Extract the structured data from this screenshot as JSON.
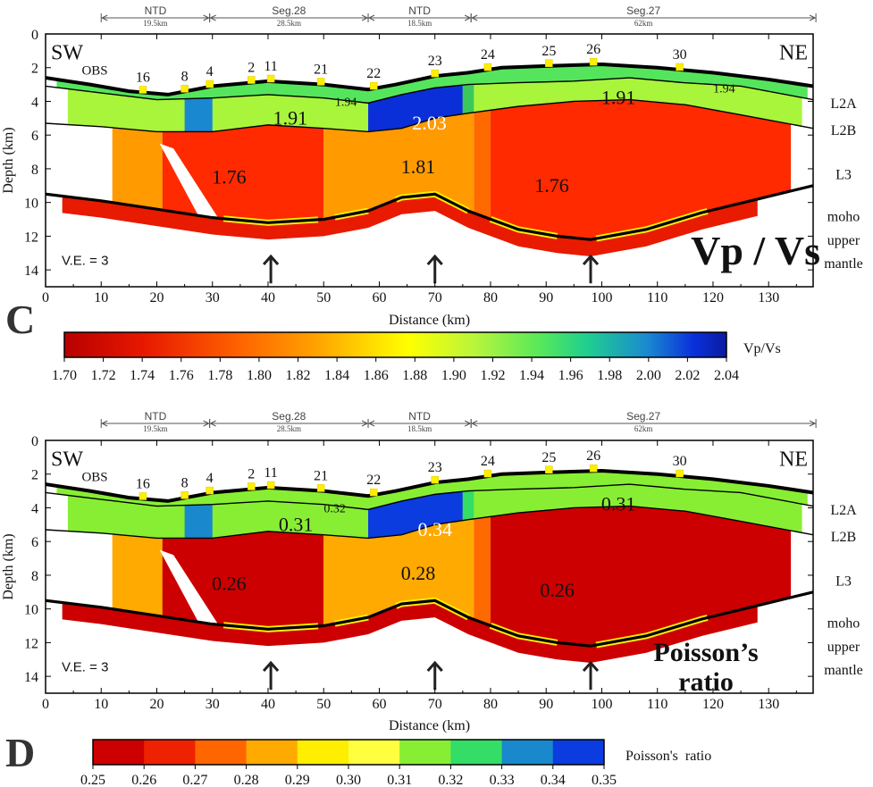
{
  "chart_data": [
    {
      "type": "heatmap",
      "panel_label": "C",
      "title": "Vp / Vs",
      "xlabel": "Distance (km)",
      "ylabel": "Depth (km)",
      "xlim": [
        0,
        138
      ],
      "ylim": [
        15,
        0
      ],
      "x_ticks": [
        "0",
        "10",
        "20",
        "30",
        "40",
        "50",
        "60",
        "70",
        "80",
        "90",
        "100",
        "110",
        "120",
        "130"
      ],
      "y_ticks": [
        "0",
        "2",
        "4",
        "6",
        "8",
        "10",
        "12",
        "14"
      ],
      "ve_label": "V.E. = 3",
      "sw_label": "SW",
      "ne_label": "NE",
      "obs_label": "OBS",
      "obs": [
        {
          "name": "16",
          "x": 17.5
        },
        {
          "name": "8",
          "x": 25
        },
        {
          "name": "4",
          "x": 29.5
        },
        {
          "name": "2",
          "x": 37
        },
        {
          "name": "11",
          "x": 40.5
        },
        {
          "name": "21",
          "x": 49.5
        },
        {
          "name": "22",
          "x": 59
        },
        {
          "name": "23",
          "x": 70
        },
        {
          "name": "24",
          "x": 79.5
        },
        {
          "name": "25",
          "x": 90.5
        },
        {
          "name": "26",
          "x": 98.5
        },
        {
          "name": "30",
          "x": 114
        }
      ],
      "segments": [
        {
          "name": "NTD",
          "length": "19.5km",
          "x0": 10,
          "x1": 29.5
        },
        {
          "name": "Seg.28",
          "length": "28.5km",
          "x0": 29.5,
          "x1": 58
        },
        {
          "name": "NTD",
          "length": "18.5km",
          "x0": 58,
          "x1": 76.5
        },
        {
          "name": "Seg.27",
          "length": "62km",
          "x0": 76.5,
          "x1": 138.5
        }
      ],
      "layers": [
        "L2A",
        "L2B",
        "L3",
        "moho",
        "upper mantle"
      ],
      "arrows_x": [
        40.5,
        70,
        98
      ],
      "values": [
        {
          "label": "1.94",
          "x": 54,
          "y": 4.0,
          "size": "small"
        },
        {
          "label": "1.91",
          "x": 44,
          "y": 5.0,
          "size": "big"
        },
        {
          "label": "2.03",
          "x": 69,
          "y": 5.3,
          "size": "big"
        },
        {
          "label": "1.91",
          "x": 103,
          "y": 3.8,
          "size": "big"
        },
        {
          "label": "1.94",
          "x": 122,
          "y": 3.2,
          "size": "small"
        },
        {
          "label": "1.76",
          "x": 33,
          "y": 8.5,
          "size": "big"
        },
        {
          "label": "1.81",
          "x": 67,
          "y": 7.9,
          "size": "big"
        },
        {
          "label": "1.76",
          "x": 91,
          "y": 9.0,
          "size": "big"
        }
      ],
      "colorbar": {
        "label": "Vp/Vs",
        "ticks": [
          "1.70",
          "1.72",
          "1.74",
          "1.76",
          "1.78",
          "1.80",
          "1.82",
          "1.84",
          "1.86",
          "1.88",
          "1.90",
          "1.92",
          "1.94",
          "1.96",
          "1.98",
          "2.00",
          "2.02",
          "2.04"
        ],
        "continuous": true,
        "colors": [
          "#c00000",
          "#e81a00",
          "#ff5a00",
          "#ff9a00",
          "#ffd21a",
          "#ffff00",
          "#c8f83c",
          "#5cee5c",
          "#1ed38a",
          "#1a90cc",
          "#0a2fd8",
          "#0a1aa8"
        ]
      }
    },
    {
      "type": "heatmap",
      "panel_label": "D",
      "title": "Poisson’s ratio",
      "title_lines": [
        "Poisson’s",
        "ratio"
      ],
      "xlabel": "Distance (km)",
      "ylabel": "Depth (km)",
      "xlim": [
        0,
        138
      ],
      "ylim": [
        15,
        0
      ],
      "x_ticks": [
        "0",
        "10",
        "20",
        "30",
        "40",
        "50",
        "60",
        "70",
        "80",
        "90",
        "100",
        "110",
        "120",
        "130"
      ],
      "y_ticks": [
        "0",
        "2",
        "4",
        "6",
        "8",
        "10",
        "12",
        "14"
      ],
      "ve_label": "V.E. = 3",
      "sw_label": "SW",
      "ne_label": "NE",
      "obs_label": "OBS",
      "obs": [
        {
          "name": "16",
          "x": 17.5
        },
        {
          "name": "8",
          "x": 25
        },
        {
          "name": "4",
          "x": 29.5
        },
        {
          "name": "2",
          "x": 37
        },
        {
          "name": "11",
          "x": 40.5
        },
        {
          "name": "21",
          "x": 49.5
        },
        {
          "name": "22",
          "x": 59
        },
        {
          "name": "23",
          "x": 70
        },
        {
          "name": "24",
          "x": 79.5
        },
        {
          "name": "25",
          "x": 90.5
        },
        {
          "name": "26",
          "x": 98.5
        },
        {
          "name": "30",
          "x": 114
        }
      ],
      "segments": [
        {
          "name": "NTD",
          "length": "19.5km",
          "x0": 10,
          "x1": 29.5
        },
        {
          "name": "Seg.28",
          "length": "28.5km",
          "x0": 29.5,
          "x1": 58
        },
        {
          "name": "NTD",
          "length": "18.5km",
          "x0": 58,
          "x1": 76.5
        },
        {
          "name": "Seg.27",
          "length": "62km",
          "x0": 76.5,
          "x1": 138.5
        }
      ],
      "layers": [
        "L2A",
        "L2B",
        "L3",
        "moho",
        "upper mantle"
      ],
      "arrows_x": [
        40.5,
        70,
        98
      ],
      "values": [
        {
          "label": "0.32",
          "x": 52,
          "y": 4.0,
          "size": "small"
        },
        {
          "label": "0.31",
          "x": 45,
          "y": 5.0,
          "size": "big"
        },
        {
          "label": "0.34",
          "x": 70,
          "y": 5.3,
          "size": "big"
        },
        {
          "label": "0.31",
          "x": 103,
          "y": 3.8,
          "size": "big"
        },
        {
          "label": "0.26",
          "x": 33,
          "y": 8.5,
          "size": "big"
        },
        {
          "label": "0.28",
          "x": 67,
          "y": 7.9,
          "size": "big"
        },
        {
          "label": "0.26",
          "x": 92,
          "y": 8.9,
          "size": "big"
        }
      ],
      "colorbar": {
        "label": "Poisson's  ratio",
        "ticks": [
          "0.25",
          "0.26",
          "0.27",
          "0.28",
          "0.29",
          "0.30",
          "0.31",
          "0.32",
          "0.33",
          "0.34",
          "0.35"
        ],
        "continuous": false,
        "colors": [
          "#cc0000",
          "#ee2200",
          "#ff6600",
          "#ffaa00",
          "#ffee00",
          "#ffff40",
          "#88ee33",
          "#33dd66",
          "#1a88cc",
          "#0a3ce0"
        ]
      }
    }
  ]
}
